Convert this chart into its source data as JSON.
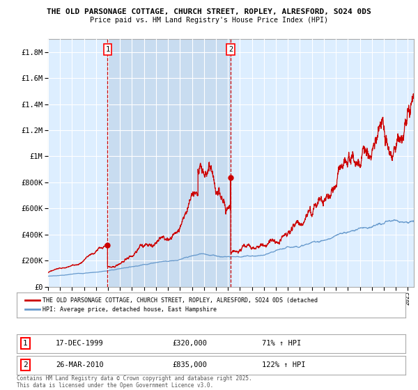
{
  "title": "THE OLD PARSONAGE COTTAGE, CHURCH STREET, ROPLEY, ALRESFORD, SO24 0DS",
  "subtitle": "Price paid vs. HM Land Registry's House Price Index (HPI)",
  "background_color": "#ffffff",
  "plot_bg_color": "#ddeeff",
  "shade_color": "#c8dcf0",
  "grid_color": "#ffffff",
  "red_line_color": "#cc0000",
  "blue_line_color": "#6699cc",
  "dashed_line_color": "#cc0000",
  "purchase1_date_num": 1999.96,
  "purchase1_price": 320000,
  "purchase1_hpi_pct": "71% ↑ HPI",
  "purchase1_date_str": "17-DEC-1999",
  "purchase2_date_num": 2010.23,
  "purchase2_price": 835000,
  "purchase2_hpi_pct": "122% ↑ HPI",
  "purchase2_date_str": "26-MAR-2010",
  "legend_line1": "THE OLD PARSONAGE COTTAGE, CHURCH STREET, ROPLEY, ALRESFORD, SO24 0DS (detached",
  "legend_line2": "HPI: Average price, detached house, East Hampshire",
  "footnote": "Contains HM Land Registry data © Crown copyright and database right 2025.\nThis data is licensed under the Open Government Licence v3.0.",
  "ylim": [
    0,
    1900000
  ],
  "xlim_start": 1995.0,
  "xlim_end": 2025.5
}
